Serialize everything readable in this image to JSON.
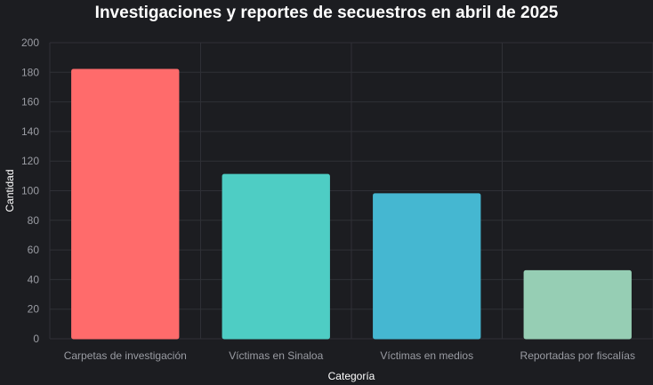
{
  "chart_data": {
    "type": "bar",
    "title": "Investigaciones y reportes de secuestros en abril de 2025",
    "xlabel": "Categoría",
    "ylabel": "Cantidad",
    "categories": [
      "Carpetas de investigación",
      "Víctimas en Sinaloa",
      "Víctimas en medios",
      "Reportadas por fiscalías"
    ],
    "values": [
      182,
      111,
      98,
      46
    ],
    "ylim": [
      0,
      200
    ],
    "yticks": [
      0,
      20,
      40,
      60,
      80,
      100,
      120,
      140,
      160,
      180,
      200
    ],
    "colors": [
      "#ff6b6b",
      "#4ecdc4",
      "#45b7d1",
      "#96ceb4"
    ],
    "grid": true,
    "legend": false
  }
}
